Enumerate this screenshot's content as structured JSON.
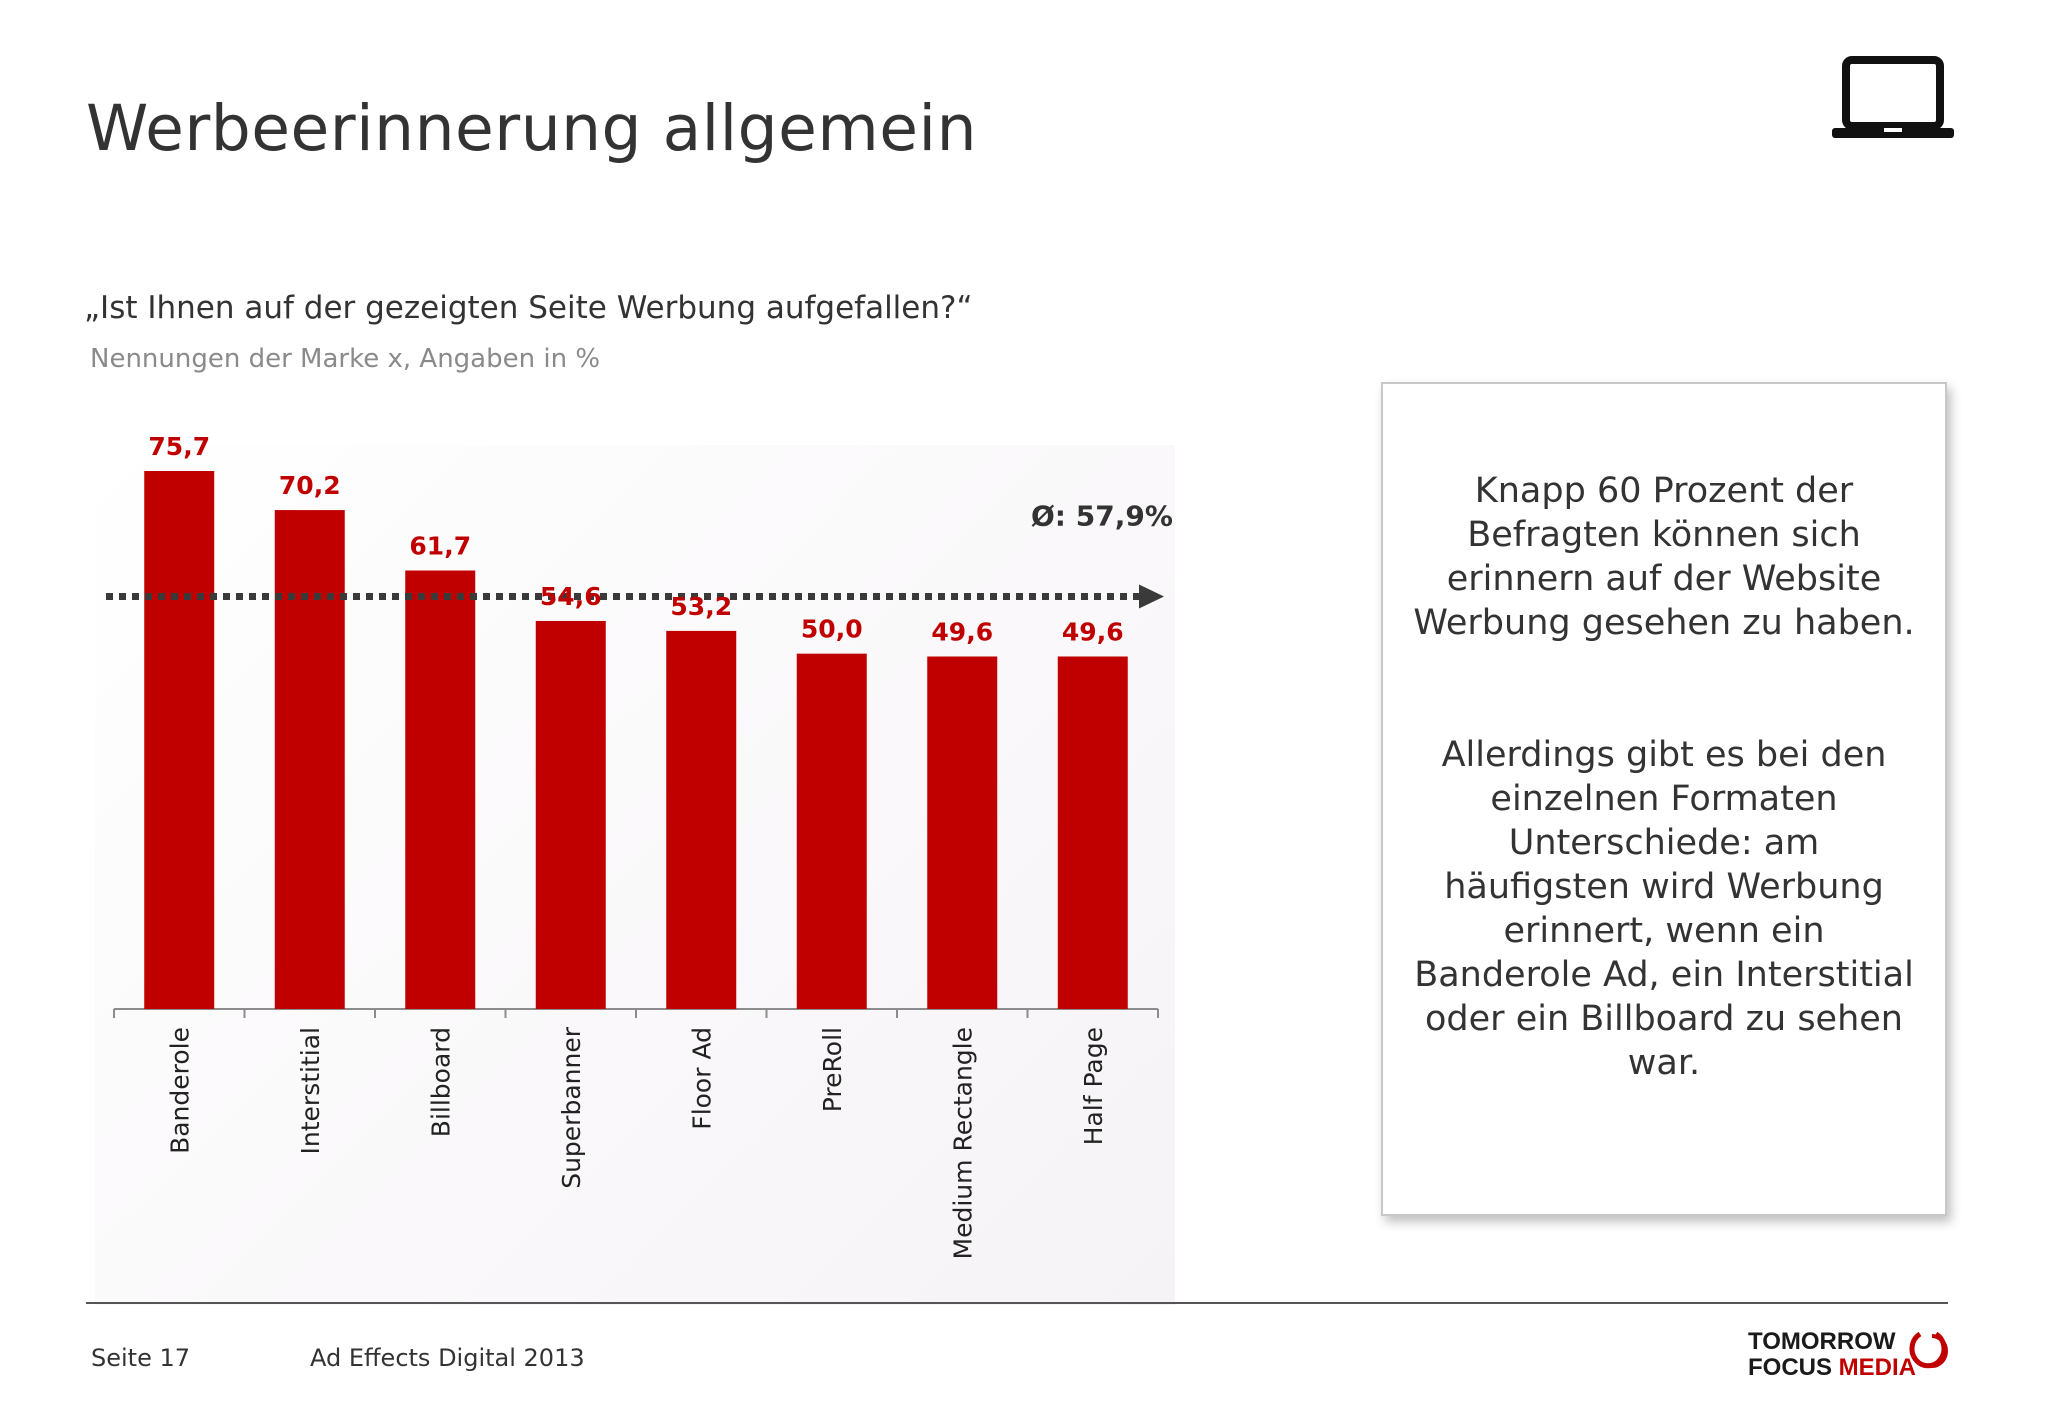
{
  "title": "Werbeerinnerung allgemein",
  "question": "„Ist Ihnen auf der gezeigten Seite Werbung aufgefallen?“",
  "subtitle": "Nennungen der Marke x, Angaben in %",
  "chart_data": {
    "type": "bar",
    "categories": [
      "Banderole",
      "Interstitial",
      "Billboard",
      "Superbanner",
      "Floor Ad",
      "PreRoll",
      "Medium Rectangle",
      "Half Page"
    ],
    "values": [
      75.7,
      70.2,
      61.7,
      54.6,
      53.2,
      50.0,
      49.6,
      49.6
    ],
    "value_labels": [
      "75,7",
      "70,2",
      "61,7",
      "54,6",
      "53,2",
      "50,0",
      "49,6",
      "49,6"
    ],
    "average": 57.9,
    "average_label": "Ø: 57,9%",
    "ylim": [
      0,
      80
    ],
    "bar_color": "#c00000",
    "grid": false
  },
  "callout": {
    "paragraph1": "Knapp 60 Prozent der Befragten können sich erinnern auf der Website Werbung gesehen zu haben.",
    "paragraph2": "Allerdings gibt es bei den einzelnen Formaten Unterschiede: am häufigsten wird Werbung erinnert, wenn ein Banderole Ad, ein Interstitial oder ein Billboard zu sehen war."
  },
  "footer": {
    "page": "Seite 17",
    "document": "Ad Effects Digital 2013"
  },
  "logo": {
    "line1": "TOMORROW",
    "focus": "FOCUS",
    "media": "MEDIA"
  },
  "icons": {
    "top_right": "laptop-icon"
  }
}
